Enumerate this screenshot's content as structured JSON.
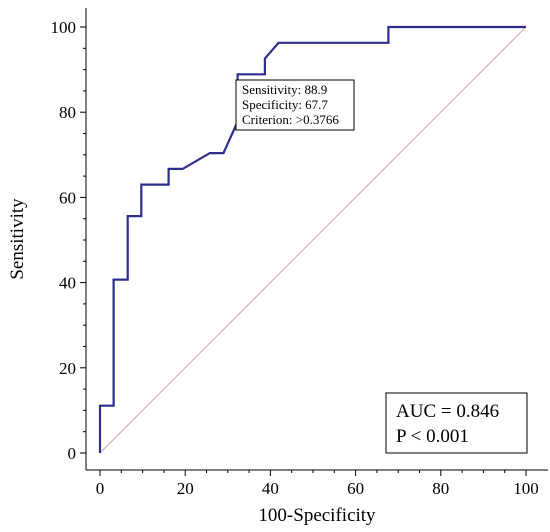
{
  "chart_data": {
    "type": "line",
    "xlabel": "100-Specificity",
    "ylabel": "Sensitivity",
    "xlim": [
      0,
      100
    ],
    "ylim": [
      0,
      100
    ],
    "x_ticks": [
      0,
      20,
      40,
      60,
      80,
      100
    ],
    "y_ticks": [
      0,
      20,
      40,
      60,
      80,
      100
    ],
    "x_tick_labels": [
      "0",
      "20",
      "40",
      "60",
      "80",
      "100"
    ],
    "y_tick_labels": [
      "0",
      "20",
      "40",
      "60",
      "80",
      "100"
    ],
    "grid": false,
    "series": [
      {
        "role": "roc-curve",
        "color": "#2e2f8c",
        "x": [
          0,
          0,
          3.2,
          3.2,
          6.5,
          6.5,
          9.7,
          9.7,
          16.1,
          16.1,
          19.4,
          25.8,
          29.0,
          32.3,
          32.3,
          38.7,
          38.7,
          41.9,
          67.7,
          67.7,
          100
        ],
        "y": [
          0,
          11.1,
          11.1,
          40.7,
          40.7,
          55.6,
          55.6,
          63.0,
          63.0,
          66.7,
          66.7,
          70.4,
          70.4,
          77.8,
          88.9,
          88.9,
          92.6,
          96.3,
          96.3,
          100,
          100
        ]
      },
      {
        "role": "reference-diagonal",
        "color": "#d9a59a",
        "x": [
          0,
          100
        ],
        "y": [
          0,
          100
        ]
      }
    ],
    "annotations": {
      "criterion_box": {
        "lines": [
          "Sensitivity: 88.9",
          "Specificity: 67.7",
          "Criterion: >0.3766"
        ]
      },
      "stats_box": {
        "lines": [
          "AUC = 0.846",
          "P < 0.001"
        ]
      }
    }
  }
}
